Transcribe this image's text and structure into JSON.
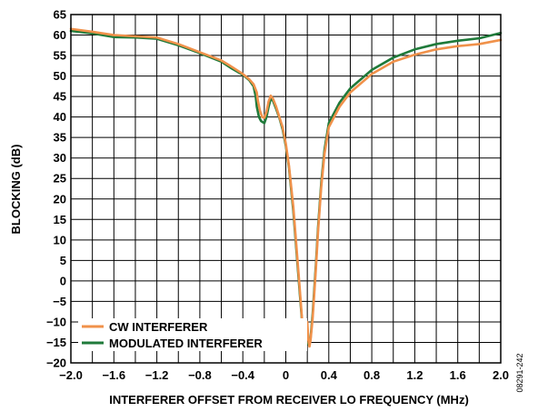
{
  "figure_id": "08291-242",
  "colors": {
    "cw": "#f0914a",
    "modulated": "#1f7a3a",
    "grid": "#000000"
  },
  "chart_data": {
    "type": "line",
    "title": "",
    "xlabel": "INTERFERER OFFSET FROM RECEIVER LO FREQUENCY (MHz)",
    "ylabel": "BLOCKING (dB)",
    "xlim": [
      -2.0,
      2.0
    ],
    "ylim": [
      -20,
      65
    ],
    "grid": true,
    "legend_position": "bottom-left",
    "x_ticks": [
      -2.0,
      -1.6,
      -1.2,
      -0.8,
      -0.4,
      0,
      0.4,
      0.8,
      1.2,
      1.6,
      2.0
    ],
    "x_tick_labels": [
      "−2.0",
      "−1.6",
      "−1.2",
      "−0.8",
      "−0.4",
      "0",
      "0.4",
      "0.8",
      "1.2",
      "1.6",
      "2.0"
    ],
    "y_ticks": [
      65,
      60,
      55,
      50,
      45,
      40,
      35,
      30,
      25,
      20,
      15,
      10,
      5,
      0,
      -5,
      -10,
      -15,
      -20
    ],
    "y_tick_labels": [
      "65",
      "60",
      "55",
      "50",
      "45",
      "40",
      "35",
      "30",
      "25",
      "20",
      "15",
      "10",
      "5",
      "0",
      "−5",
      "−10",
      "−15",
      "−20"
    ],
    "series": [
      {
        "name": "CW INTERFERER",
        "color": "#f0914a",
        "points": [
          [
            -2.0,
            61.5
          ],
          [
            -1.8,
            60.8
          ],
          [
            -1.6,
            60.0
          ],
          [
            -1.4,
            59.7
          ],
          [
            -1.2,
            59.4
          ],
          [
            -1.0,
            57.8
          ],
          [
            -0.8,
            55.8
          ],
          [
            -0.6,
            53.8
          ],
          [
            -0.5,
            52.2
          ],
          [
            -0.4,
            50.5
          ],
          [
            -0.34,
            49.2
          ],
          [
            -0.3,
            48.0
          ],
          [
            -0.27,
            46.0
          ],
          [
            -0.26,
            44.0
          ],
          [
            -0.24,
            41.5
          ],
          [
            -0.22,
            40.0
          ],
          [
            -0.2,
            39.8
          ],
          [
            -0.18,
            41.2
          ],
          [
            -0.16,
            43.8
          ],
          [
            -0.14,
            45.2
          ],
          [
            -0.12,
            44.5
          ],
          [
            -0.09,
            42.5
          ],
          [
            -0.06,
            40.0
          ],
          [
            -0.03,
            37.5
          ],
          [
            0.0,
            33.5
          ],
          [
            0.03,
            28.0
          ],
          [
            0.07,
            18.0
          ],
          [
            0.1,
            8.0
          ],
          [
            0.13,
            -2.0
          ],
          [
            0.15,
            -9.0
          ],
          [
            0.17,
            -13.5
          ],
          [
            0.18,
            -15.5
          ],
          [
            0.19,
            -14.0
          ],
          [
            0.2,
            -10.0
          ],
          [
            0.21,
            -14.5
          ],
          [
            0.22,
            -16.0
          ],
          [
            0.23,
            -14.5
          ],
          [
            0.25,
            -9.0
          ],
          [
            0.28,
            3.0
          ],
          [
            0.3,
            12.0
          ],
          [
            0.33,
            23.0
          ],
          [
            0.36,
            31.0
          ],
          [
            0.4,
            37.5
          ],
          [
            0.5,
            42.5
          ],
          [
            0.6,
            46.0
          ],
          [
            0.8,
            50.5
          ],
          [
            1.0,
            53.5
          ],
          [
            1.2,
            55.2
          ],
          [
            1.4,
            56.5
          ],
          [
            1.6,
            57.3
          ],
          [
            1.8,
            57.8
          ],
          [
            2.0,
            58.8
          ]
        ]
      },
      {
        "name": "MODULATED INTERFERER",
        "color": "#1f7a3a",
        "points": [
          [
            -2.0,
            61.0
          ],
          [
            -1.8,
            60.4
          ],
          [
            -1.6,
            59.5
          ],
          [
            -1.4,
            59.4
          ],
          [
            -1.2,
            59.1
          ],
          [
            -1.0,
            57.5
          ],
          [
            -0.8,
            55.6
          ],
          [
            -0.6,
            53.5
          ],
          [
            -0.5,
            51.8
          ],
          [
            -0.4,
            50.3
          ],
          [
            -0.34,
            49.0
          ],
          [
            -0.3,
            47.5
          ],
          [
            -0.28,
            45.0
          ],
          [
            -0.27,
            42.5
          ],
          [
            -0.25,
            40.0
          ],
          [
            -0.23,
            39.0
          ],
          [
            -0.2,
            38.5
          ],
          [
            -0.18,
            40.0
          ],
          [
            -0.16,
            42.5
          ],
          [
            -0.14,
            44.5
          ],
          [
            -0.12,
            44.0
          ],
          [
            -0.09,
            42.0
          ],
          [
            -0.06,
            39.8
          ],
          [
            -0.03,
            37.0
          ],
          [
            0.0,
            33.0
          ],
          [
            0.03,
            27.5
          ],
          [
            0.07,
            17.0
          ],
          [
            0.1,
            7.0
          ],
          [
            0.13,
            -3.0
          ],
          [
            0.15,
            -9.5
          ],
          [
            0.17,
            -13.5
          ],
          [
            0.19,
            -15.0
          ],
          [
            0.21,
            -15.5
          ],
          [
            0.23,
            -14.0
          ],
          [
            0.25,
            -8.0
          ],
          [
            0.28,
            4.0
          ],
          [
            0.3,
            13.0
          ],
          [
            0.33,
            24.0
          ],
          [
            0.36,
            32.0
          ],
          [
            0.4,
            38.5
          ],
          [
            0.5,
            43.5
          ],
          [
            0.6,
            47.0
          ],
          [
            0.8,
            51.5
          ],
          [
            1.0,
            54.5
          ],
          [
            1.2,
            56.5
          ],
          [
            1.4,
            57.8
          ],
          [
            1.6,
            58.6
          ],
          [
            1.8,
            59.2
          ],
          [
            2.0,
            60.5
          ]
        ]
      }
    ]
  }
}
